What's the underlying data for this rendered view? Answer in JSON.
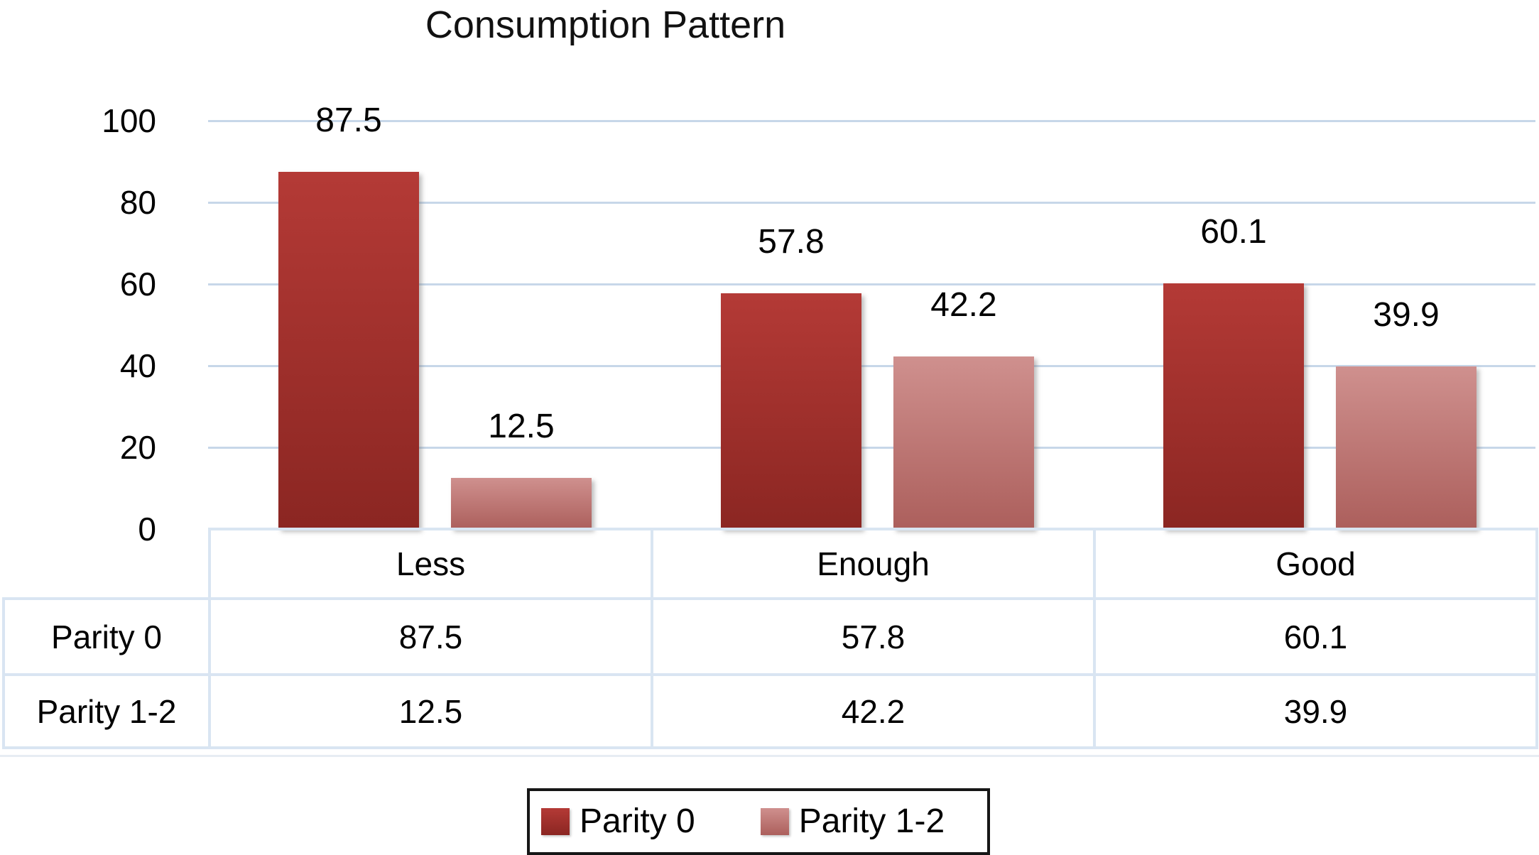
{
  "chart_data": {
    "type": "bar",
    "title": "Consumption Pattern",
    "categories": [
      "Less",
      "Enough",
      "Good"
    ],
    "series": [
      {
        "name": "Parity 0",
        "values": [
          87.5,
          57.8,
          60.1
        ],
        "color_top": "#b43a36",
        "color_bottom": "#8b2622"
      },
      {
        "name": "Parity 1-2",
        "values": [
          12.5,
          42.2,
          39.9
        ],
        "color_top": "#cf908e",
        "color_bottom": "#ac5f5c"
      }
    ],
    "xlabel": "",
    "ylabel": "",
    "ylim": [
      0,
      100
    ],
    "yticks": [
      0,
      20,
      40,
      60,
      80,
      100
    ],
    "grid": true,
    "bar_value_labels_shown": true,
    "data_table_shown": true,
    "legend_position": "bottom"
  },
  "colors": {
    "gridline": "#c7d7e9",
    "table_border": "#d9e5f2",
    "table_shadow_line": "#e7ecf3",
    "legend_border": "#161616",
    "text": "#000000",
    "background": "#ffffff"
  }
}
